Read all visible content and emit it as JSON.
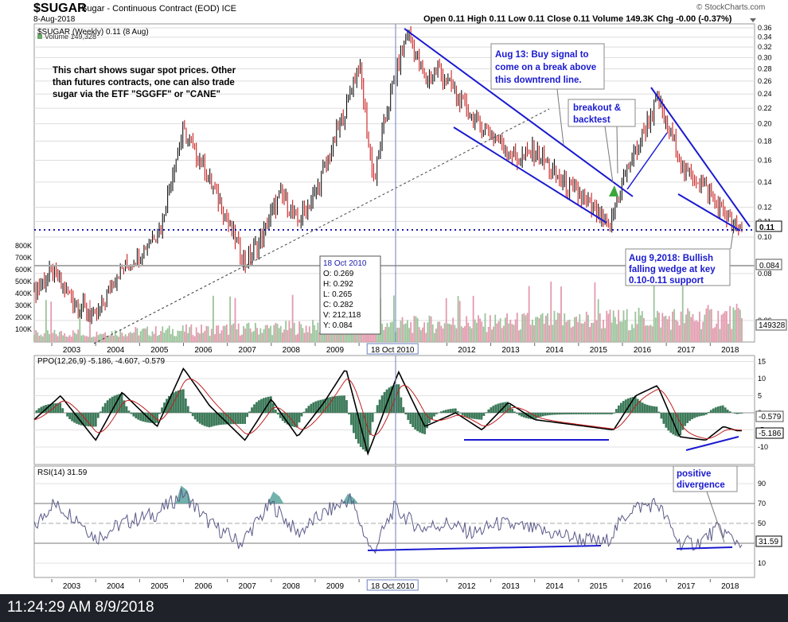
{
  "header": {
    "symbol": "$SUGAR",
    "description": "Sugar - Continuous Contract (EOD) ICE",
    "date": "8-Aug-2018",
    "ohlc": "Open 0.11  High 0.11  Low 0.11  Close 0.11  Volume 149.3K  Chg -0.00 (-0.37%)",
    "watermark": "© StockCharts.com"
  },
  "timestamp": "11:24:29 AM 8/9/2018",
  "price_panel": {
    "legend_price": "$SUGAR (Weekly) 0.11 (8 Aug)",
    "legend_volume": "Volume 149,328",
    "note": [
      "This chart shows sugar spot prices. Other",
      "than futures contracts, one can also trade",
      "sugar via the ETF \"SGGFF\" or \"CANE\""
    ],
    "ann_buy": [
      "Aug 13: Buy signal to",
      "come on a break above",
      "this downtrend line."
    ],
    "ann_breakout": [
      "breakout &",
      "backtest"
    ],
    "ann_wedge": [
      "Aug 9,2018: Bullish",
      "falling wedge at key",
      "0.10-0.11 support"
    ],
    "tooltip": [
      "18 Oct 2010",
      "O: 0.269",
      "H: 0.292",
      "L: 0.265",
      "C: 0.282",
      "V: 212,118",
      "Y: 0.084"
    ],
    "last_price_label": "0.11",
    "ma_label": "0.084",
    "last_volume_label": "149328"
  },
  "ppo_panel": {
    "legend": "PPO(12,26,9) -5.186, -4.607, -0.579",
    "label_signal": "-0.579",
    "label_ppo": "-5.186"
  },
  "rsi_panel": {
    "legend": "RSI(14) 31.59",
    "label": "31.59",
    "ann": [
      "positive",
      "divergence"
    ]
  },
  "x_axis": {
    "years": [
      "2003",
      "2004",
      "2005",
      "2006",
      "2007",
      "2008",
      "2009",
      "2010",
      "2012",
      "2013",
      "2014",
      "2015",
      "2016",
      "2017",
      "2018"
    ],
    "cursor_label": "18 Oct 2010"
  },
  "chart_data": [
    {
      "type": "line",
      "title": "$SUGAR (Weekly)",
      "x": [
        2002.6,
        2003.0,
        2003.5,
        2004.0,
        2004.5,
        2005.0,
        2005.5,
        2006.0,
        2006.5,
        2007.0,
        2007.4,
        2007.8,
        2008.2,
        2008.6,
        2009.0,
        2009.3,
        2009.7,
        2010.0,
        2010.2,
        2010.35,
        2010.5,
        2010.8,
        2011.1,
        2011.5,
        2011.8,
        2012.3,
        2012.7,
        2013.1,
        2013.6,
        2014.0,
        2014.6,
        2015.0,
        2015.4,
        2015.7,
        2016.0,
        2016.4,
        2016.8,
        2017.0,
        2017.4,
        2017.8,
        2018.2,
        2018.6
      ],
      "y": [
        0.072,
        0.08,
        0.068,
        0.06,
        0.08,
        0.09,
        0.108,
        0.19,
        0.15,
        0.11,
        0.085,
        0.1,
        0.13,
        0.11,
        0.13,
        0.16,
        0.22,
        0.29,
        0.18,
        0.14,
        0.18,
        0.26,
        0.35,
        0.26,
        0.28,
        0.23,
        0.2,
        0.185,
        0.16,
        0.17,
        0.14,
        0.13,
        0.115,
        0.105,
        0.14,
        0.18,
        0.23,
        0.2,
        0.15,
        0.14,
        0.12,
        0.105
      ],
      "y_axis_labels": [
        "0.36",
        "0.34",
        "0.32",
        "0.30",
        "0.28",
        "0.26",
        "0.24",
        "0.22",
        "0.20",
        "0.18",
        "0.16",
        "0.14",
        "0.12",
        "0.11",
        "0.10",
        "0.08",
        "0.06"
      ],
      "volume_axis_labels": [
        "800K",
        "700K",
        "600K",
        "500K",
        "400K",
        "300K",
        "200K",
        "100K"
      ],
      "scale": "log"
    },
    {
      "type": "line",
      "title": "PPO(12,26,9)",
      "series": [
        {
          "values_x": [
            2002.6,
            2003.2,
            2004.0,
            2004.6,
            2005.4,
            2006.0,
            2006.6,
            2007.4,
            2008.0,
            2008.6,
            2009.2,
            2009.7,
            2010.2,
            2010.5,
            2010.9,
            2011.5,
            2012.2,
            2012.8,
            2013.4,
            2014.0,
            2014.6,
            2015.2,
            2015.8,
            2016.3,
            2016.8,
            2017.3,
            2017.9,
            2018.3,
            2018.6
          ],
          "values": [
            -2,
            5,
            -8,
            6,
            -4,
            13,
            2,
            -8,
            4,
            -7,
            3,
            13,
            -12,
            -2,
            12,
            -4,
            0,
            -5,
            3,
            -2,
            -3,
            -4,
            -5,
            5,
            8,
            -7,
            -8,
            -4,
            -5.2
          ]
        }
      ],
      "y_axis_labels": [
        "15",
        "10",
        "5",
        "0",
        "-5",
        "-10"
      ]
    },
    {
      "type": "line",
      "title": "RSI(14)",
      "series": [
        {
          "values_x": [
            2002.6,
            2003.0,
            2003.6,
            2004.0,
            2004.6,
            2005.4,
            2006.0,
            2006.6,
            2007.3,
            2008.0,
            2008.6,
            2009.2,
            2009.8,
            2010.3,
            2010.8,
            2011.4,
            2012.0,
            2012.6,
            2013.2,
            2013.8,
            2014.4,
            2015.0,
            2015.6,
            2016.2,
            2016.8,
            2017.3,
            2017.7,
            2018.2,
            2018.6
          ],
          "values": [
            45,
            70,
            55,
            35,
            50,
            60,
            80,
            50,
            30,
            70,
            40,
            60,
            75,
            20,
            65,
            45,
            50,
            40,
            50,
            45,
            40,
            35,
            30,
            65,
            70,
            30,
            30,
            45,
            31.6
          ]
        }
      ],
      "y_axis_labels": [
        "90",
        "70",
        "50",
        "30",
        "10"
      ]
    }
  ]
}
